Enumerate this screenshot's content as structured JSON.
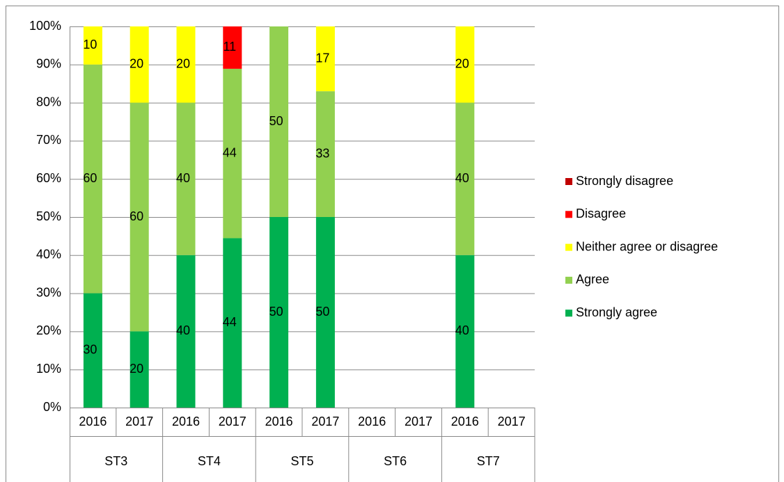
{
  "chart_data": {
    "type": "bar",
    "categories": [
      "2016",
      "2017",
      "2016",
      "2017",
      "2016",
      "2017",
      "2016",
      "2017",
      "2016",
      "2017"
    ],
    "groups": [
      "ST3",
      "ST4",
      "ST5",
      "ST6",
      "ST7"
    ],
    "series": [
      {
        "name": "Strongly agree",
        "color": "#00b050",
        "values": [
          30,
          20,
          40,
          44,
          50,
          50,
          null,
          null,
          40,
          null
        ]
      },
      {
        "name": "Agree",
        "color": "#92d050",
        "values": [
          60,
          60,
          40,
          44,
          50,
          33,
          null,
          null,
          40,
          null
        ]
      },
      {
        "name": "Neither agree or disagree",
        "color": "#ffff00",
        "values": [
          10,
          20,
          20,
          null,
          null,
          17,
          null,
          null,
          20,
          null
        ]
      },
      {
        "name": "Disagree",
        "color": "#ff0000",
        "values": [
          null,
          null,
          null,
          11,
          null,
          null,
          null,
          null,
          null,
          null
        ]
      },
      {
        "name": "Strongly disagree",
        "color": "#c00000",
        "values": [
          null,
          null,
          null,
          null,
          null,
          null,
          null,
          null,
          null,
          null
        ]
      }
    ],
    "stacking": "percent",
    "ylim": [
      0,
      100
    ],
    "yticks": [
      {
        "value": 0,
        "label": "0%"
      },
      {
        "value": 10,
        "label": "10%"
      },
      {
        "value": 20,
        "label": "20%"
      },
      {
        "value": 30,
        "label": "30%"
      },
      {
        "value": 40,
        "label": "40%"
      },
      {
        "value": 50,
        "label": "50%"
      },
      {
        "value": 60,
        "label": "60%"
      },
      {
        "value": 70,
        "label": "70%"
      },
      {
        "value": 80,
        "label": "80%"
      },
      {
        "value": 90,
        "label": "90%"
      },
      {
        "value": 100,
        "label": "100%"
      }
    ],
    "grid": true,
    "legend": "right"
  }
}
